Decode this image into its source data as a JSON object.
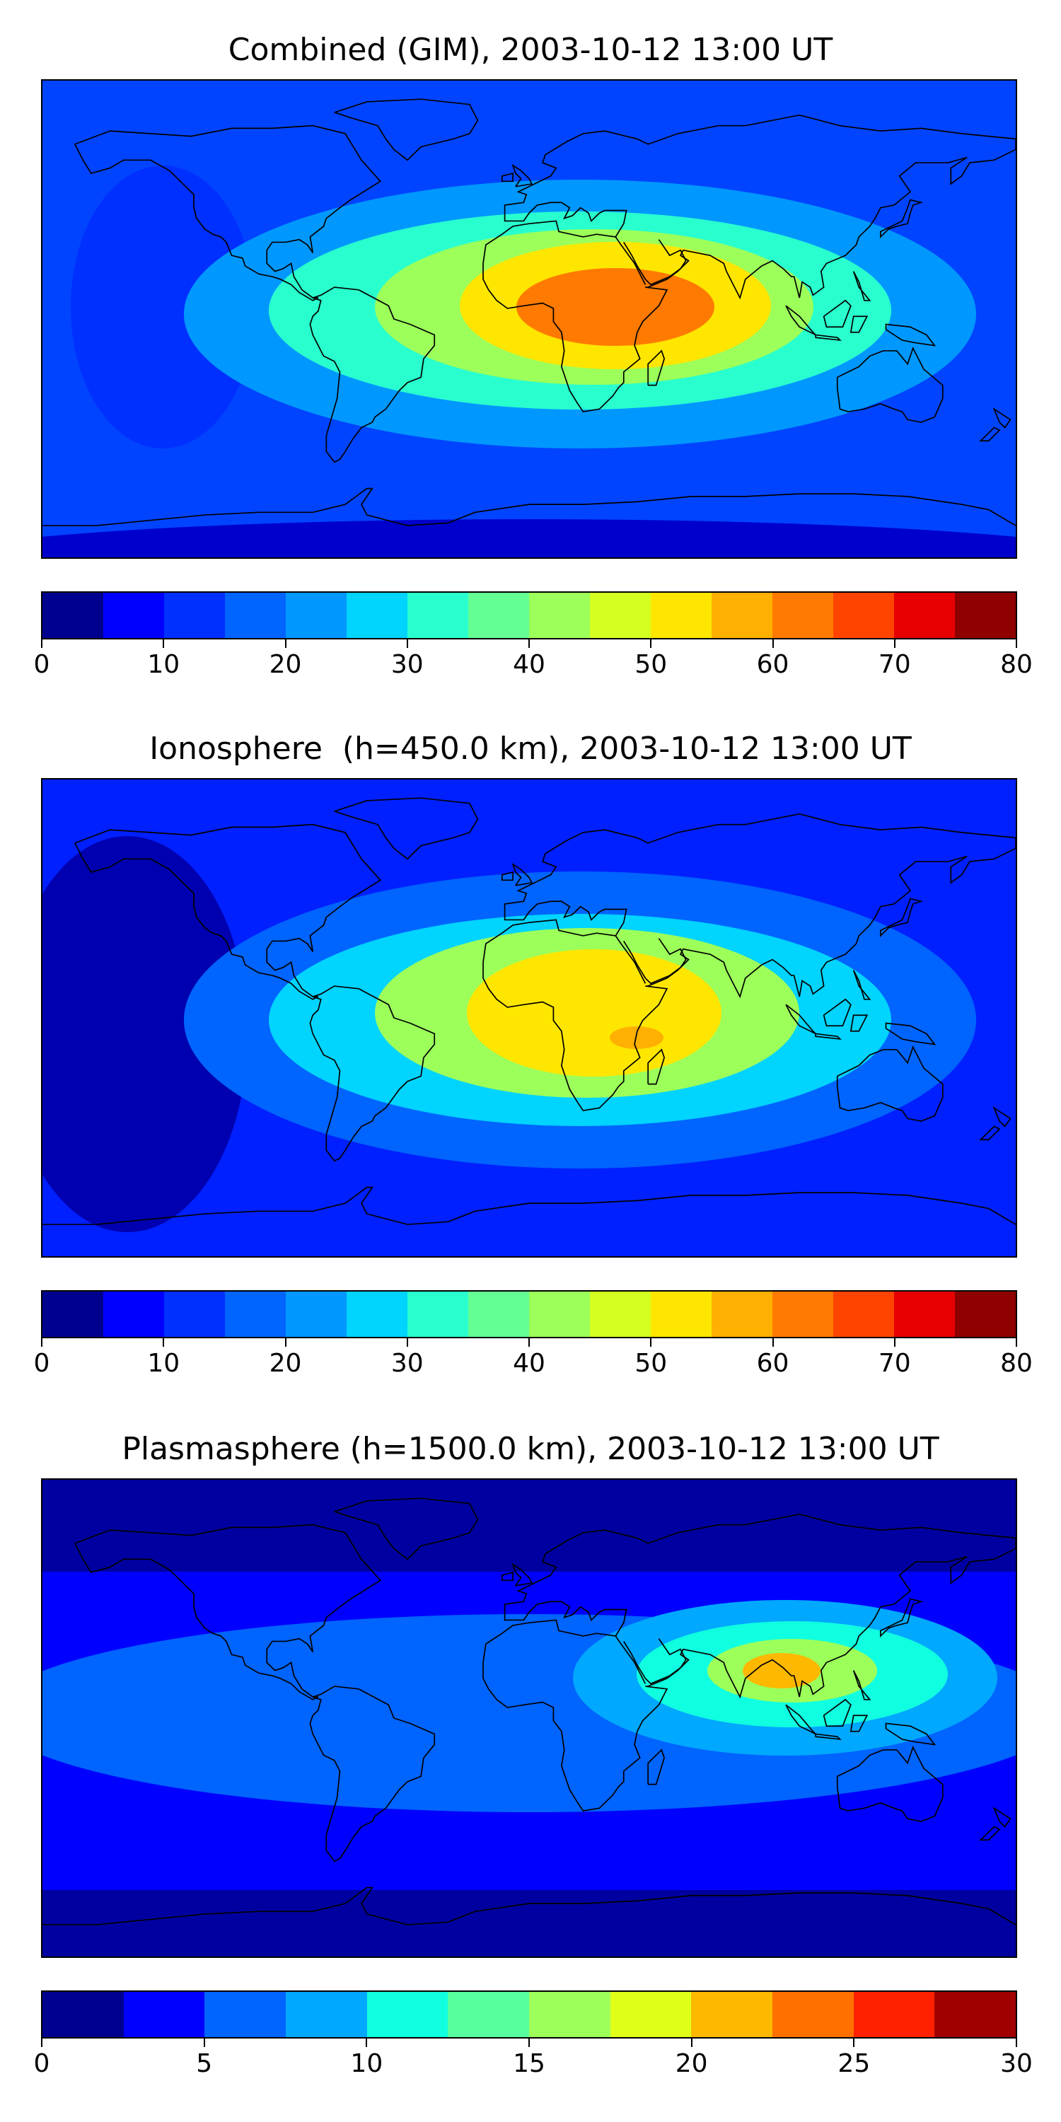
{
  "panels": [
    {
      "title": "Combined (GIM), 2003-10-12 13:00 UT",
      "colorbar": {
        "colors": [
          "#00008f",
          "#0000ff",
          "#0030ff",
          "#0064ff",
          "#0098ff",
          "#00d4ff",
          "#29ffce",
          "#63ff94",
          "#9cff5a",
          "#d4ff21",
          "#ffe600",
          "#ffb000",
          "#ff7a00",
          "#ff4400",
          "#e60000",
          "#8f0000"
        ],
        "ticks": [
          0,
          10,
          20,
          30,
          40,
          50,
          60,
          70,
          80
        ]
      },
      "background": "#0044ff",
      "blobs": [
        {
          "name": "polar-south-band",
          "color": "#0000cc"
        },
        {
          "name": "pacific-west-low",
          "color": "#0030ff"
        },
        {
          "name": "equatorial-anomaly-outer",
          "color": "#0098ff"
        },
        {
          "name": "equatorial-anomaly-mid",
          "color": "#29ffce"
        },
        {
          "name": "equatorial-anomaly-inner",
          "color": "#9cff5a"
        },
        {
          "name": "africa-peak-yellow",
          "color": "#ffe600"
        },
        {
          "name": "africa-peak-orange",
          "color": "#ff7a00"
        }
      ]
    },
    {
      "title": "Ionosphere  (h=450.0 km), 2003-10-12 13:00 UT",
      "colorbar": {
        "colors": [
          "#00008f",
          "#0000ff",
          "#0030ff",
          "#0064ff",
          "#0098ff",
          "#00d4ff",
          "#29ffce",
          "#63ff94",
          "#9cff5a",
          "#d4ff21",
          "#ffe600",
          "#ffb000",
          "#ff7a00",
          "#ff4400",
          "#e60000",
          "#8f0000"
        ],
        "ticks": [
          0,
          10,
          20,
          30,
          40,
          50,
          60,
          70,
          80
        ]
      },
      "background": "#0020ff",
      "blobs": [
        {
          "name": "pacific-dark-low",
          "color": "#0000b0"
        },
        {
          "name": "equatorial-anomaly-outer",
          "color": "#0064ff"
        },
        {
          "name": "equatorial-anomaly-mid",
          "color": "#00d4ff"
        },
        {
          "name": "equatorial-anomaly-inner",
          "color": "#9cff5a"
        },
        {
          "name": "africa-peak-yellow",
          "color": "#ffe600"
        },
        {
          "name": "africa-peak-orange",
          "color": "#ffb000"
        }
      ]
    },
    {
      "title": "Plasmasphere (h=1500.0 km), 2003-10-12 13:00 UT",
      "colorbar": {
        "colors": [
          "#00008f",
          "#0000ff",
          "#0064ff",
          "#00a8ff",
          "#10ffe0",
          "#58ff9e",
          "#9cff5a",
          "#e0ff18",
          "#ffb800",
          "#ff7000",
          "#ff2000",
          "#a00000"
        ],
        "ticks": [
          0,
          5,
          10,
          15,
          20,
          25,
          30
        ]
      },
      "background": "#0000ff",
      "blobs": [
        {
          "name": "polar-north-band",
          "color": "#0000a0"
        },
        {
          "name": "polar-south-band",
          "color": "#0000a0"
        },
        {
          "name": "mid-latitude-band",
          "color": "#0064ff"
        },
        {
          "name": "asia-anomaly-outer",
          "color": "#00a8ff"
        },
        {
          "name": "asia-anomaly-mid",
          "color": "#10ffe0"
        },
        {
          "name": "asia-anomaly-inner",
          "color": "#9cff5a"
        },
        {
          "name": "india-peak",
          "color": "#ffb800"
        }
      ]
    }
  ]
}
